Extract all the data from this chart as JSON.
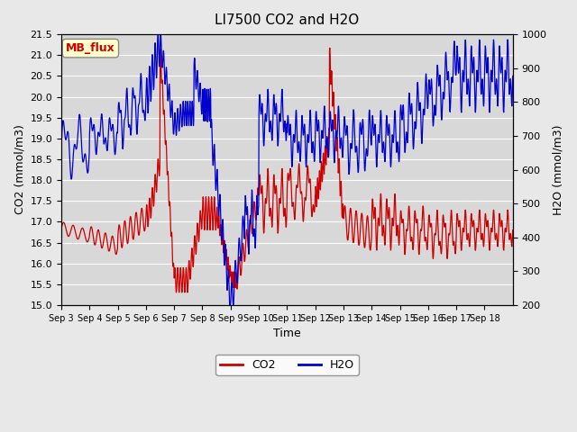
{
  "title": "LI7500 CO2 and H2O",
  "xlabel": "Time",
  "ylabel_left": "CO2 (mmol/m3)",
  "ylabel_right": "H2O (mmol/m3)",
  "ylim_left": [
    15.0,
    21.5
  ],
  "ylim_right": [
    200,
    1000
  ],
  "yticks_left": [
    15.0,
    15.5,
    16.0,
    16.5,
    17.0,
    17.5,
    18.0,
    18.5,
    19.0,
    19.5,
    20.0,
    20.5,
    21.0,
    21.5
  ],
  "yticks_right": [
    200,
    300,
    400,
    500,
    600,
    700,
    800,
    900,
    1000
  ],
  "xtick_labels": [
    "Sep 3",
    "Sep 4",
    "Sep 5",
    "Sep 6",
    "Sep 7",
    "Sep 8",
    "Sep 9",
    "Sep 10",
    "Sep 11",
    "Sep 12",
    "Sep 13",
    "Sep 14",
    "Sep 15",
    "Sep 16",
    "Sep 17",
    "Sep 18"
  ],
  "co2_color": "#cc0000",
  "h2o_color": "#0000cc",
  "bg_color": "#e8e8e8",
  "plot_bg_color": "#d8d8d8",
  "grid_color": "#ffffff",
  "tag_text": "MB_flux",
  "tag_bg": "#ffffcc",
  "tag_edge": "#888888",
  "tag_text_color": "#cc0000"
}
